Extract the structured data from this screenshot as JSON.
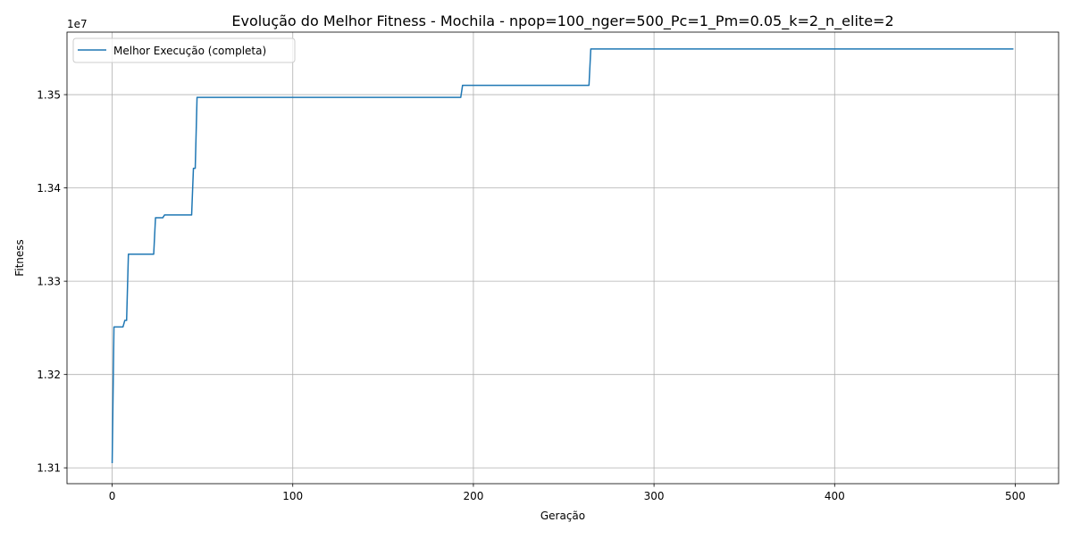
{
  "chart_data": {
    "type": "line",
    "title": "Evolução do Melhor Fitness - Mochila - npop=100_nger=500_Pc=1_Pm=0.05_k=2_n_elite=2",
    "xlabel": "Geração",
    "ylabel": "Fitness",
    "y_offset_label": "1e7",
    "y_scale_factor": 10000000,
    "xlim": [
      -25,
      524
    ],
    "ylim": [
      13083000,
      13567000
    ],
    "xticks": [
      0,
      100,
      200,
      300,
      400,
      500
    ],
    "xtick_labels": [
      "0",
      "100",
      "200",
      "300",
      "400",
      "500"
    ],
    "yticks": [
      13100000,
      13200000,
      13300000,
      13400000,
      13500000
    ],
    "ytick_labels": [
      "1.31",
      "1.32",
      "1.33",
      "1.34",
      "1.35"
    ],
    "grid": true,
    "legend_position": "top-left",
    "series": [
      {
        "name": "Melhor Execução (completa)",
        "color": "#1f77b4",
        "step": true,
        "points": [
          [
            0,
            13105000
          ],
          [
            1,
            13251000
          ],
          [
            6,
            13251000
          ],
          [
            7,
            13258000
          ],
          [
            8,
            13258000
          ],
          [
            9,
            13329000
          ],
          [
            23,
            13329000
          ],
          [
            24,
            13368000
          ],
          [
            28,
            13368000
          ],
          [
            29,
            13371000
          ],
          [
            44,
            13371000
          ],
          [
            45,
            13421000
          ],
          [
            46,
            13421000
          ],
          [
            47,
            13497000
          ],
          [
            193,
            13497000
          ],
          [
            194,
            13510000
          ],
          [
            264,
            13510000
          ],
          [
            265,
            13549000
          ],
          [
            499,
            13549000
          ]
        ]
      }
    ]
  }
}
